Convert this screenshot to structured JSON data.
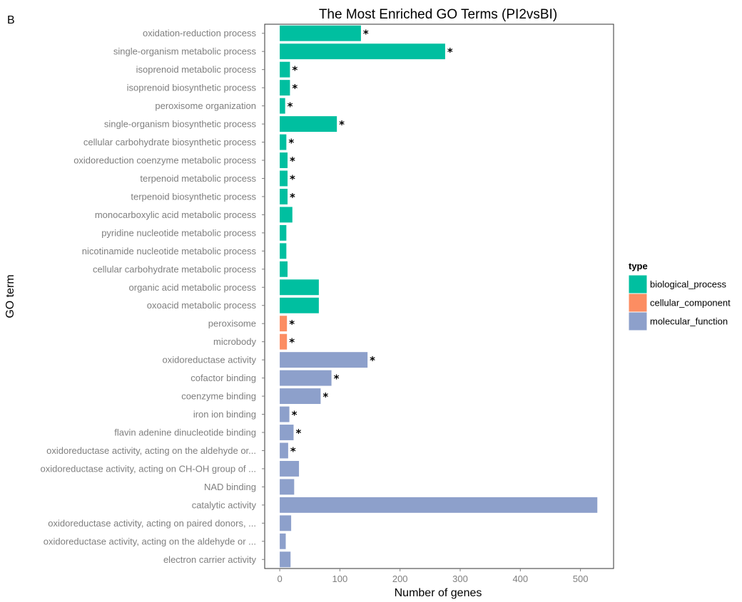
{
  "panel_label": "B",
  "chart_data": {
    "type": "bar",
    "orientation": "horizontal",
    "title": "The Most Enriched GO Terms (PI2vsBI)",
    "xlabel": "Number of genes",
    "ylabel": "GO term",
    "xlim": [
      -25,
      555
    ],
    "xticks": [
      0,
      100,
      200,
      300,
      400,
      500
    ],
    "grid": false,
    "legend": {
      "title": "type",
      "placement": "right",
      "entries": [
        {
          "name": "biological_process",
          "color": "#00bfa0"
        },
        {
          "name": "cellular_component",
          "color": "#fc8d62"
        },
        {
          "name": "molecular_function",
          "color": "#8da0cb"
        }
      ]
    },
    "significance_marker": "*",
    "bars": [
      {
        "term": "oxidation-reduction process",
        "value": 135,
        "type": "biological_process",
        "significant": true
      },
      {
        "term": "single-organism metabolic process",
        "value": 275,
        "type": "biological_process",
        "significant": true
      },
      {
        "term": "isoprenoid metabolic process",
        "value": 17,
        "type": "biological_process",
        "significant": true
      },
      {
        "term": "isoprenoid biosynthetic process",
        "value": 17,
        "type": "biological_process",
        "significant": true
      },
      {
        "term": "peroxisome organization",
        "value": 9,
        "type": "biological_process",
        "significant": true
      },
      {
        "term": "single-organism biosynthetic process",
        "value": 95,
        "type": "biological_process",
        "significant": true
      },
      {
        "term": "cellular carbohydrate biosynthetic process",
        "value": 11,
        "type": "biological_process",
        "significant": true
      },
      {
        "term": "oxidoreduction coenzyme metabolic process",
        "value": 13,
        "type": "biological_process",
        "significant": true
      },
      {
        "term": "terpenoid metabolic process",
        "value": 13,
        "type": "biological_process",
        "significant": true
      },
      {
        "term": "terpenoid biosynthetic process",
        "value": 13,
        "type": "biological_process",
        "significant": true
      },
      {
        "term": "monocarboxylic acid metabolic process",
        "value": 21,
        "type": "biological_process",
        "significant": false
      },
      {
        "term": "pyridine nucleotide metabolic process",
        "value": 11,
        "type": "biological_process",
        "significant": false
      },
      {
        "term": "nicotinamide nucleotide metabolic process",
        "value": 11,
        "type": "biological_process",
        "significant": false
      },
      {
        "term": "cellular carbohydrate metabolic process",
        "value": 13,
        "type": "biological_process",
        "significant": false
      },
      {
        "term": "organic acid metabolic process",
        "value": 65,
        "type": "biological_process",
        "significant": false
      },
      {
        "term": "oxoacid metabolic process",
        "value": 65,
        "type": "biological_process",
        "significant": false
      },
      {
        "term": "peroxisome",
        "value": 12,
        "type": "cellular_component",
        "significant": true
      },
      {
        "term": "microbody",
        "value": 12,
        "type": "cellular_component",
        "significant": true
      },
      {
        "term": "oxidoreductase activity",
        "value": 146,
        "type": "molecular_function",
        "significant": true
      },
      {
        "term": "cofactor binding",
        "value": 86,
        "type": "molecular_function",
        "significant": true
      },
      {
        "term": "coenzyme binding",
        "value": 68,
        "type": "molecular_function",
        "significant": true
      },
      {
        "term": "iron ion binding",
        "value": 16,
        "type": "molecular_function",
        "significant": true
      },
      {
        "term": "flavin adenine dinucleotide binding",
        "value": 23,
        "type": "molecular_function",
        "significant": true
      },
      {
        "term": "oxidoreductase activity, acting on the aldehyde or...",
        "value": 14,
        "type": "molecular_function",
        "significant": true
      },
      {
        "term": "oxidoreductase activity, acting on CH-OH group of ...",
        "value": 32,
        "type": "molecular_function",
        "significant": false
      },
      {
        "term": "NAD binding",
        "value": 24,
        "type": "molecular_function",
        "significant": false
      },
      {
        "term": "catalytic activity",
        "value": 528,
        "type": "molecular_function",
        "significant": false
      },
      {
        "term": "oxidoreductase activity, acting on paired donors, ...",
        "value": 19,
        "type": "molecular_function",
        "significant": false
      },
      {
        "term": "oxidoreductase activity, acting on the aldehyde or ...",
        "value": 10,
        "type": "molecular_function",
        "significant": false
      },
      {
        "term": "electron carrier activity",
        "value": 18,
        "type": "molecular_function",
        "significant": false
      }
    ]
  }
}
